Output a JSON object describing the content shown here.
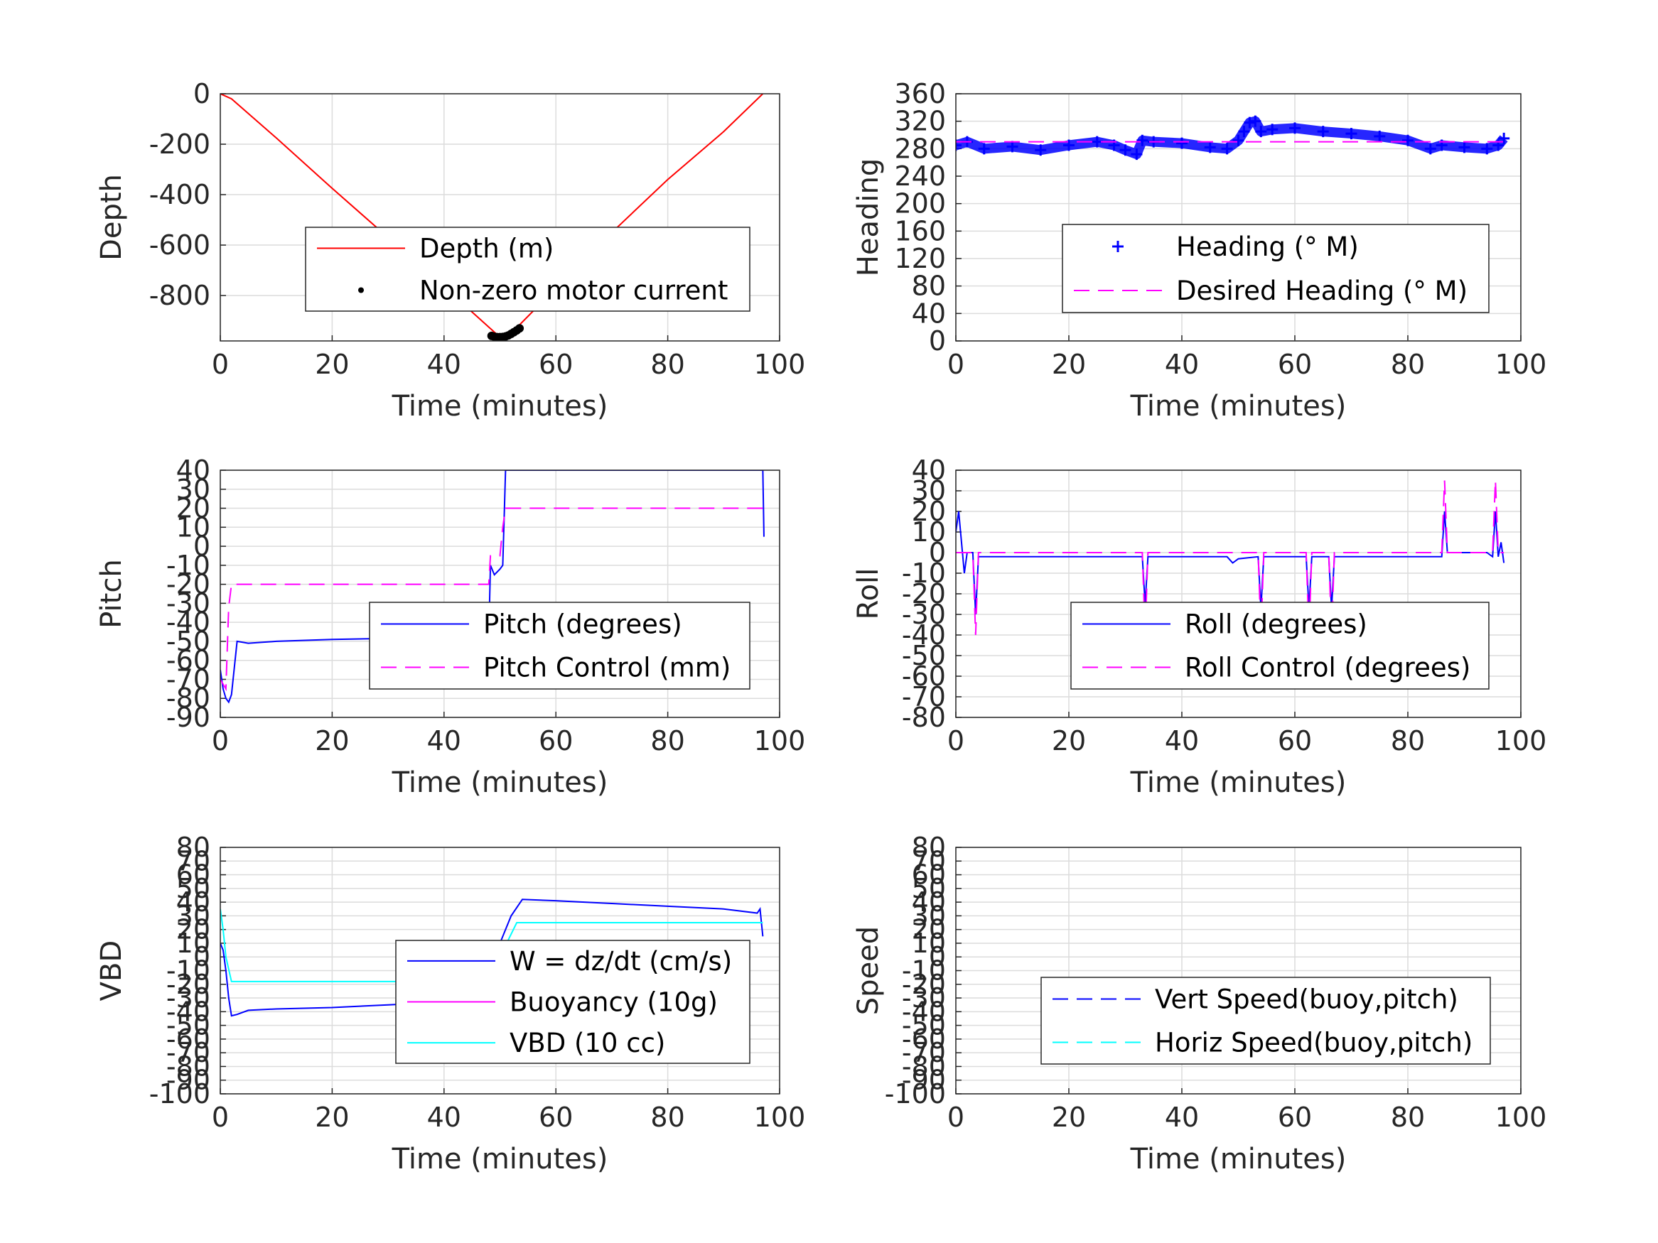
{
  "chart_data": [
    {
      "type": "line",
      "xlabel": "Time (minutes)",
      "ylabel": "Depth",
      "xlim": [
        0,
        100
      ],
      "ylim": [
        -980,
        0
      ],
      "xticks": [
        "0",
        "20",
        "40",
        "60",
        "80",
        "100"
      ],
      "yticks": [
        "0",
        "-200",
        "-400",
        "-600",
        "-800"
      ],
      "ytick_values": [
        0,
        -200,
        -400,
        -600,
        -800
      ],
      "grid": true,
      "legend_position": "center-right",
      "series": [
        {
          "name": "Depth (m)",
          "color": "#ff0000",
          "style": "solid",
          "x": [
            0,
            2,
            10,
            20,
            30,
            40,
            48,
            50,
            52,
            60,
            70,
            80,
            90,
            97
          ],
          "y": [
            0,
            -20,
            -175,
            -375,
            -570,
            -765,
            -925,
            -965,
            -950,
            -770,
            -550,
            -340,
            -150,
            0
          ]
        },
        {
          "name": "Non-zero motor current",
          "color": "#000000",
          "style": "dots",
          "x": [
            48.5,
            49,
            49.5,
            50,
            50.5,
            51,
            51.5,
            52,
            52.5,
            53,
            53.5
          ],
          "y": [
            -960,
            -963,
            -965,
            -965,
            -964,
            -962,
            -958,
            -952,
            -945,
            -938,
            -930
          ]
        }
      ]
    },
    {
      "type": "scatter",
      "xlabel": "Time (minutes)",
      "ylabel": "Heading",
      "xlim": [
        0,
        100
      ],
      "ylim": [
        0,
        360
      ],
      "xticks": [
        "0",
        "20",
        "40",
        "60",
        "80",
        "100"
      ],
      "yticks": [
        "0",
        "40",
        "80",
        "120",
        "160",
        "200",
        "240",
        "280",
        "320",
        "360"
      ],
      "ytick_values": [
        0,
        40,
        80,
        120,
        160,
        200,
        240,
        280,
        320,
        360
      ],
      "grid": true,
      "legend_position": "center-right",
      "series": [
        {
          "name": "Heading (° M)",
          "color": "#0000ff",
          "style": "plus",
          "x": [
            0,
            2,
            5,
            10,
            15,
            20,
            25,
            28,
            30,
            32,
            33,
            35,
            40,
            45,
            48,
            50,
            51,
            52,
            53,
            54,
            56,
            60,
            65,
            70,
            75,
            80,
            84,
            86,
            90,
            94,
            96,
            97
          ],
          "y": [
            285,
            290,
            280,
            283,
            278,
            285,
            290,
            285,
            278,
            272,
            292,
            290,
            288,
            282,
            280,
            292,
            305,
            318,
            320,
            305,
            308,
            310,
            305,
            302,
            298,
            292,
            280,
            285,
            282,
            280,
            285,
            295
          ]
        },
        {
          "name": "Desired Heading (° M)",
          "color": "#ff00ff",
          "style": "dashed",
          "x": [
            0,
            97
          ],
          "y": [
            290,
            290
          ]
        }
      ]
    },
    {
      "type": "line",
      "xlabel": "Time (minutes)",
      "ylabel": "Pitch",
      "xlim": [
        0,
        100
      ],
      "ylim": [
        -90,
        40
      ],
      "xticks": [
        "0",
        "20",
        "40",
        "60",
        "80",
        "100"
      ],
      "yticks": [
        "40",
        "30",
        "20",
        "10",
        "0",
        "-10",
        "-20",
        "-30",
        "-40",
        "-50",
        "-60",
        "-70",
        "-80",
        "-90"
      ],
      "ytick_values": [
        40,
        30,
        20,
        10,
        0,
        -10,
        -20,
        -30,
        -40,
        -50,
        -60,
        -70,
        -80,
        -90
      ],
      "grid": true,
      "legend_position": "center-right",
      "series": [
        {
          "name": "Pitch (degrees)",
          "color": "#0000ff",
          "style": "solid",
          "x": [
            0,
            0.5,
            1,
            1.5,
            2,
            3,
            5,
            10,
            20,
            30,
            33.5,
            34,
            34.5,
            40,
            48,
            48.3,
            49,
            50,
            50.5,
            51,
            97,
            97.2
          ],
          "y": [
            -65,
            -75,
            -80,
            -82,
            -78,
            -50,
            -51,
            -50,
            -49,
            -48.5,
            -48,
            -51,
            -48,
            -48,
            -47,
            -10,
            -15,
            -12,
            -10,
            40,
            40,
            5
          ]
        },
        {
          "name": "Pitch Control (mm)",
          "color": "#ff00ff",
          "style": "dashed",
          "x": [
            0,
            1,
            1.5,
            2,
            48,
            48.3,
            50,
            50.5,
            51,
            97
          ],
          "y": [
            -70,
            -75,
            -32,
            -20,
            -20,
            -5,
            -5,
            10,
            20,
            20
          ]
        }
      ]
    },
    {
      "type": "line",
      "xlabel": "Time (minutes)",
      "ylabel": "Roll",
      "xlim": [
        0,
        100
      ],
      "ylim": [
        -80,
        40
      ],
      "xticks": [
        "0",
        "20",
        "40",
        "60",
        "80",
        "100"
      ],
      "yticks": [
        "40",
        "30",
        "20",
        "10",
        "0",
        "-10",
        "-20",
        "-30",
        "-40",
        "-50",
        "-60",
        "-70",
        "-80"
      ],
      "ytick_values": [
        40,
        30,
        20,
        10,
        0,
        -10,
        -20,
        -30,
        -40,
        -50,
        -60,
        -70,
        -80
      ],
      "grid": true,
      "legend_position": "center-right",
      "series": [
        {
          "name": "Roll (degrees)",
          "color": "#0000ff",
          "style": "solid",
          "x": [
            0,
            0.5,
            1,
            1.5,
            2,
            3,
            3.5,
            4,
            5,
            20,
            33,
            33.5,
            34,
            40,
            48,
            49,
            50,
            53.5,
            54,
            54.5,
            62,
            62.5,
            63,
            66,
            66.5,
            67,
            85,
            86,
            86.5,
            87,
            90,
            94,
            95,
            95.5,
            96,
            96.5,
            97
          ],
          "y": [
            10,
            20,
            5,
            -10,
            0,
            0,
            -30,
            -2,
            -2,
            -2,
            -2,
            -25,
            -2,
            -2,
            -2,
            -5,
            -3,
            -2,
            -27,
            -2,
            -2,
            -27,
            -2,
            -2,
            -27,
            -2,
            -2,
            -2,
            20,
            0,
            0,
            0,
            -2,
            20,
            -2,
            5,
            -5
          ]
        },
        {
          "name": "Roll Control (degrees)",
          "color": "#ff00ff",
          "style": "dashed",
          "x": [
            0,
            3,
            3.5,
            4,
            33,
            33.5,
            34,
            53.5,
            54,
            54.5,
            62,
            62.5,
            63,
            66,
            66.5,
            67,
            86,
            86.5,
            87,
            95,
            95.5,
            96,
            97
          ],
          "y": [
            0,
            0,
            -40,
            0,
            0,
            -40,
            0,
            0,
            -40,
            0,
            0,
            -40,
            0,
            0,
            -40,
            0,
            0,
            35,
            0,
            0,
            35,
            0,
            0
          ]
        }
      ]
    },
    {
      "type": "line",
      "xlabel": "Time (minutes)",
      "ylabel": "VBD",
      "xlim": [
        0,
        100
      ],
      "ylim": [
        -100,
        80
      ],
      "xticks": [
        "0",
        "20",
        "40",
        "60",
        "80",
        "100"
      ],
      "yticks": [
        "80",
        "70",
        "60",
        "50",
        "40",
        "30",
        "20",
        "10",
        "0",
        "-10",
        "-20",
        "-30",
        "-40",
        "-50",
        "-60",
        "-70",
        "-80",
        "-90",
        "-100"
      ],
      "ytick_values": [
        80,
        70,
        60,
        50,
        40,
        30,
        20,
        10,
        0,
        -10,
        -20,
        -30,
        -40,
        -50,
        -60,
        -70,
        -80,
        -90,
        -100
      ],
      "grid": true,
      "legend_position": "center-right",
      "series": [
        {
          "name": "W = dz/dt (cm/s)",
          "color": "#0000ff",
          "style": "solid",
          "x": [
            0,
            0.5,
            1,
            1.5,
            2,
            3,
            5,
            10,
            20,
            30,
            40,
            48,
            48.3,
            50,
            52,
            54,
            60,
            70,
            80,
            90,
            96,
            96.5,
            97
          ],
          "y": [
            10,
            5,
            -10,
            -30,
            -43,
            -42,
            -39,
            -38,
            -37,
            -35,
            -33,
            -32,
            -5,
            10,
            30,
            42,
            41,
            39,
            37,
            35,
            32,
            35,
            15
          ]
        },
        {
          "name": "Buoyancy (10g)",
          "color": "#ff00ff",
          "style": "solid",
          "x": [
            48,
            54
          ],
          "y": [
            -30,
            -30
          ]
        },
        {
          "name": "VBD (10 cc)",
          "color": "#00ffff",
          "style": "solid",
          "x": [
            0,
            0.5,
            1,
            2,
            48,
            49,
            50,
            53,
            97
          ],
          "y": [
            35,
            20,
            0,
            -18,
            -18,
            -5,
            0,
            25,
            25
          ]
        }
      ]
    },
    {
      "type": "line",
      "xlabel": "Time (minutes)",
      "ylabel": "Speed",
      "xlim": [
        0,
        100
      ],
      "ylim": [
        -100,
        80
      ],
      "xticks": [
        "0",
        "20",
        "40",
        "60",
        "80",
        "100"
      ],
      "yticks": [
        "80",
        "70",
        "60",
        "50",
        "40",
        "30",
        "20",
        "10",
        "0",
        "-10",
        "-20",
        "-30",
        "-40",
        "-50",
        "-60",
        "-70",
        "-80",
        "-90",
        "-100"
      ],
      "ytick_values": [
        80,
        70,
        60,
        50,
        40,
        30,
        20,
        10,
        0,
        -10,
        -20,
        -30,
        -40,
        -50,
        -60,
        -70,
        -80,
        -90,
        -100
      ],
      "grid": true,
      "legend_position": "center-right",
      "series": [
        {
          "name": "Vert Speed(buoy,pitch)",
          "color": "#0000ff",
          "style": "dashed",
          "x": [],
          "y": []
        },
        {
          "name": "Horiz Speed(buoy,pitch)",
          "color": "#00ffff",
          "style": "dashed",
          "x": [],
          "y": []
        }
      ]
    }
  ]
}
